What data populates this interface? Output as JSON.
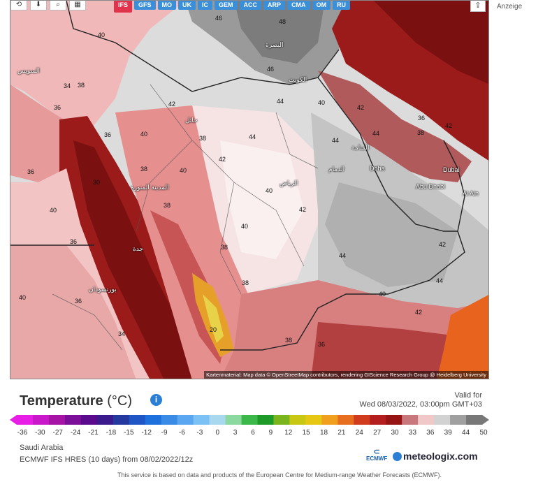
{
  "toolbar": {
    "icons": [
      "reset-view-icon",
      "download-icon",
      "zoom-icon",
      "layers-icon"
    ],
    "model_tabs": [
      {
        "label": "IFS",
        "active": true
      },
      {
        "label": "GFS",
        "active": false
      },
      {
        "label": "MO",
        "active": false
      },
      {
        "label": "UK",
        "active": false
      },
      {
        "label": "IC",
        "active": false
      },
      {
        "label": "GEM",
        "active": false
      },
      {
        "label": "ACC",
        "active": false
      },
      {
        "label": "ARP",
        "active": false
      },
      {
        "label": "CMA",
        "active": false
      },
      {
        "label": "OM",
        "active": false
      },
      {
        "label": "RU",
        "active": false
      }
    ],
    "share_icon": "share-icon"
  },
  "ad_label": "Anzeige",
  "map": {
    "attribution": "Kartenmaterial: Map data © OpenStreetMap contributors, rendering GIScience Research Group @ Heidelberg University",
    "cities": [
      "الكويت",
      "البصرة",
      "الرياض",
      "الدمام",
      "المدينة المنورة",
      "جدة",
      "Doha",
      "Dubai",
      "Abu Dhabi",
      "Al Ain",
      "السويس",
      "بورتسودان",
      "المنامة",
      "حائل"
    ],
    "values": [
      "46",
      "48",
      "46",
      "44",
      "40",
      "42",
      "40",
      "38",
      "36",
      "40",
      "42",
      "44",
      "44",
      "40",
      "38",
      "36",
      "40",
      "42",
      "40",
      "38",
      "36",
      "38",
      "40",
      "42",
      "44",
      "44",
      "42",
      "40",
      "36",
      "38",
      "20",
      "36",
      "34",
      "38",
      "36",
      "42",
      "44",
      "30",
      "36",
      "38",
      "40",
      "42",
      "38",
      "34"
    ]
  },
  "legend": {
    "title": "Temperature",
    "unit": "(°C)",
    "valid_label": "Valid for",
    "valid_time": "Wed 08/03/2022, 03:00pm GMT+03",
    "ticks": [
      "-36",
      "-30",
      "-27",
      "-24",
      "-21",
      "-18",
      "-15",
      "-12",
      "-9",
      "-6",
      "-3",
      "0",
      "3",
      "6",
      "9",
      "12",
      "15",
      "18",
      "21",
      "24",
      "27",
      "30",
      "33",
      "36",
      "39",
      "44",
      "50"
    ],
    "colors": [
      "#e61ee6",
      "#c918c9",
      "#a514a5",
      "#7c0f9a",
      "#5a0a8c",
      "#3a1a8c",
      "#2438a0",
      "#1f55c4",
      "#1e70dc",
      "#3a8be6",
      "#5aa6f0",
      "#7cc1f5",
      "#a8d8f0",
      "#8cd9a0",
      "#3cb84a",
      "#1e9a28",
      "#7ab51e",
      "#c8c814",
      "#e6c814",
      "#f0a01e",
      "#e66e1e",
      "#d23c1e",
      "#b41e1e",
      "#961414",
      "#c8787c",
      "#f0c8c8",
      "#d2d2d2",
      "#a0a0a0",
      "#787878"
    ]
  },
  "meta": {
    "region": "Saudi Arabia",
    "model_run": "ECMWF IFS HRES (10 days) from 08/02/2022/12z",
    "ecmwf_logo_text": "ECMWF",
    "brand": "meteologix.com",
    "footer": "This service is based on data and products of the European Centre for Medium-range Weather Forecasts (ECMWF)."
  }
}
